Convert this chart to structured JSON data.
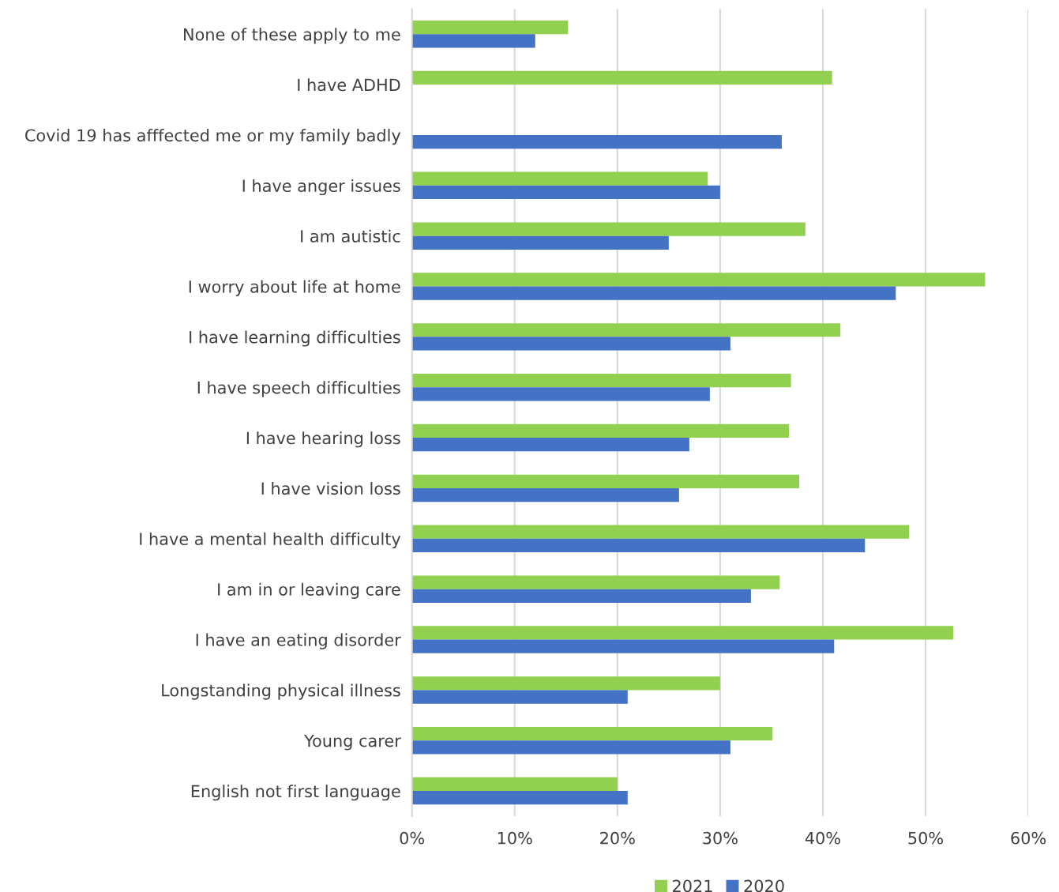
{
  "chart_data": {
    "type": "bar",
    "orientation": "horizontal",
    "categories": [
      "None of these apply to me",
      "I have ADHD",
      "Covid 19 has afffected me or my family badly",
      "I have anger issues",
      "I am autistic",
      "I worry about life at home",
      "I have learning difficulties",
      "I have speech difficulties",
      "I have hearing loss",
      "I have vision loss",
      "I have a mental health difficulty",
      "I am in or leaving care",
      "I have an eating disorder",
      "Longstanding physical illness",
      "Young carer",
      "English not first language"
    ],
    "series": [
      {
        "name": "2021",
        "color": "#92d050",
        "values": [
          15.2,
          40.9,
          null,
          28.8,
          38.3,
          55.8,
          41.7,
          36.9,
          36.7,
          37.7,
          48.4,
          35.8,
          52.7,
          30.0,
          35.1,
          20.0
        ]
      },
      {
        "name": "2020",
        "color": "#4472c4",
        "values": [
          12.0,
          null,
          36.0,
          30.0,
          25.0,
          47.1,
          31.0,
          29.0,
          27.0,
          26.0,
          44.1,
          33.0,
          41.1,
          21.0,
          31.0,
          21.0
        ]
      }
    ],
    "xlim": [
      0,
      60
    ],
    "xticks": [
      {
        "value": 0,
        "label": "0%"
      },
      {
        "value": 10,
        "label": "10%"
      },
      {
        "value": 20,
        "label": "20%"
      },
      {
        "value": 30,
        "label": "30%"
      },
      {
        "value": 40,
        "label": "40%"
      },
      {
        "value": 50,
        "label": "50%"
      },
      {
        "value": 60,
        "label": "60%"
      }
    ],
    "grid": "x",
    "legend": "bottom"
  }
}
